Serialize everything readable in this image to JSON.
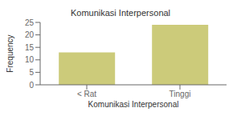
{
  "chart_data": {
    "type": "bar",
    "title": "Komunikasi Interpersonal",
    "xlabel": "Komunikasi Interpersonal",
    "ylabel": "Frequency",
    "categories": [
      "< Rat",
      "Tinggi"
    ],
    "values": [
      13,
      24
    ],
    "color": "#cccb7a",
    "ylim": [
      0,
      25
    ],
    "yticks": [
      0,
      5,
      10,
      15,
      20,
      25
    ],
    "grid": false
  }
}
